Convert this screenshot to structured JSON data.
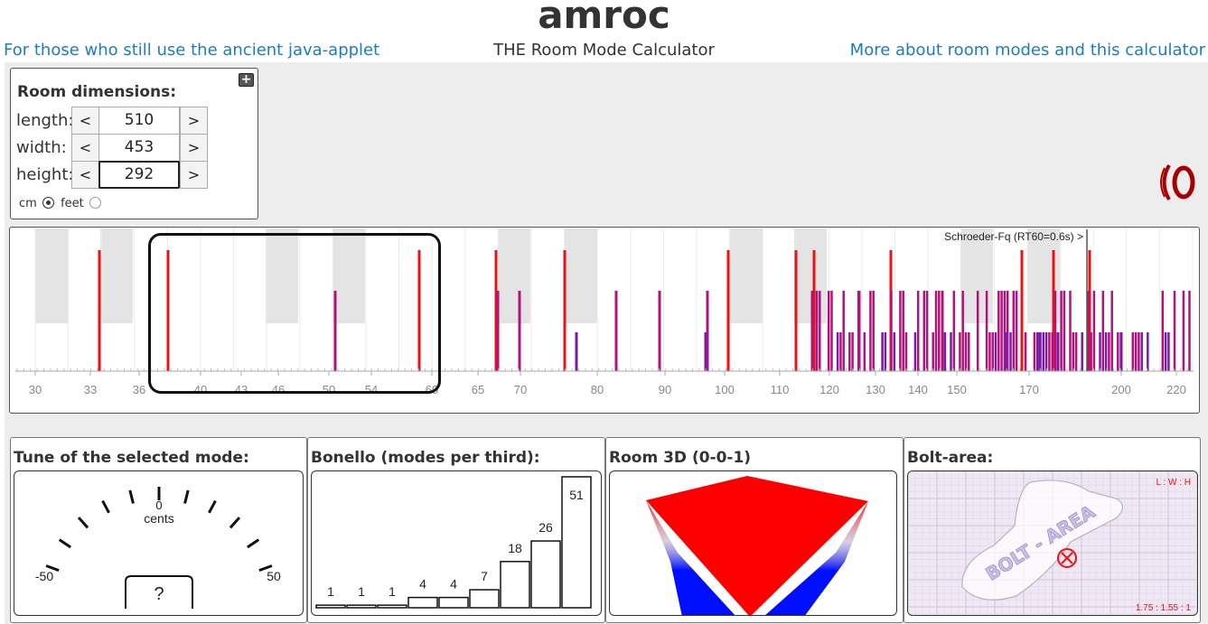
{
  "header": {
    "title": "amroc",
    "left_link": "For those who still use the ancient java-applet",
    "subtitle": "THE Room Mode Calculator",
    "right_link": "More about room modes and this calculator"
  },
  "room": {
    "heading": "Room dimensions:",
    "expand_label": "+",
    "decrement_label": "<",
    "increment_label": ">",
    "length": {
      "label": "length:",
      "value": "510"
    },
    "width": {
      "label": "width:",
      "value": "453"
    },
    "height": {
      "label": "height:",
      "value": "292"
    },
    "units": {
      "cm": "cm",
      "feet": "feet",
      "selected": "cm"
    }
  },
  "spectrum": {
    "schroeder_label": "Schroeder-Fq (RT60=0.6s) >",
    "tick_labels": [
      "30",
      "33",
      "36",
      "40",
      "43",
      "46",
      "50",
      "54",
      "60",
      "65",
      "70",
      "80",
      "90",
      "100",
      "110",
      "120",
      "130",
      "140",
      "150",
      "170",
      "200",
      "220"
    ]
  },
  "panels": {
    "tune": {
      "title": "Tune of the selected mode:",
      "zero_label": "0",
      "unit_label": "cents",
      "min_label": "-50",
      "max_label": "50",
      "value_label": "?"
    },
    "bonello": {
      "title": "Bonello (modes per third):",
      "counts": [
        "1",
        "1",
        "1",
        "4",
        "4",
        "7",
        "18",
        "26",
        "51"
      ]
    },
    "room3d": {
      "title": "Room 3D (0-0-1)"
    },
    "bolt": {
      "title": "Bolt-area:",
      "corner_label": "L : W : H",
      "area_label": "BOLT - AREA",
      "ratio_label": "1.75 : 1.55 : 1"
    }
  },
  "colors": {
    "link": "#1a7dc4",
    "axial_mode": "#ee1111",
    "tangential_mode": "#b0147c",
    "oblique_mode": "#7a1aa8",
    "room_top": "#ff0000",
    "room_side": "#0010ff"
  }
}
